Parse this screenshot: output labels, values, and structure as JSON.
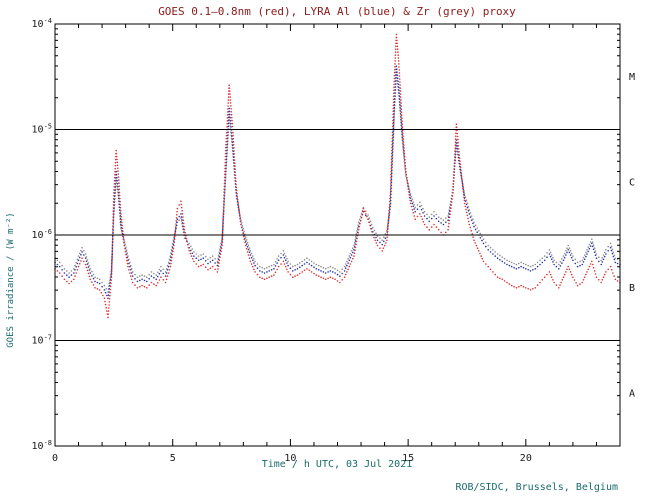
{
  "credit": "ROB/SIDC, Brussels, Belgium",
  "colors": {
    "title": "#8b1a1a",
    "axis_label": "#1a6b6b",
    "credit": "#1a6b6b",
    "tick": "#1a1a1a",
    "flare_class": "#111111",
    "frame": "#000000",
    "background": "#ffffff",
    "goes_red": "#dd3030",
    "lyra_al_blue": "#2233aa",
    "lyra_zr_grey": "#8c8c8c"
  },
  "chart_data": {
    "type": "scatter",
    "title": "GOES 0.1–0.8nm (red), LYRA Al (blue) & Zr (grey) proxy",
    "xlabel": "Time / h UTC, 03 Jul 2021",
    "ylabel": "GOES irradiance / (W m⁻²)",
    "x_range": [
      0,
      24
    ],
    "y_log10_range": [
      -8,
      -4
    ],
    "y_scale": "log10",
    "y_unit": "W m-2",
    "x_major_ticks": [
      0,
      5,
      10,
      15,
      20
    ],
    "y_decades": [
      -4,
      -5,
      -6,
      -7,
      -8
    ],
    "hlines_log10": [
      -5,
      -6,
      -7
    ],
    "grid": "off",
    "legend": "in-title",
    "flare_classes": [
      {
        "label": "M",
        "log10_mid": -4.5
      },
      {
        "label": "C",
        "log10_mid": -5.5
      },
      {
        "label": "B",
        "log10_mid": -6.5
      },
      {
        "label": "A",
        "log10_mid": -7.5
      }
    ],
    "x": [
      0,
      0.2,
      0.4,
      0.6,
      0.8,
      1.0,
      1.15,
      1.3,
      1.5,
      1.7,
      1.9,
      2.1,
      2.25,
      2.4,
      2.5,
      2.6,
      2.7,
      2.8,
      2.95,
      3.1,
      3.3,
      3.5,
      3.7,
      3.9,
      4.1,
      4.3,
      4.5,
      4.7,
      4.9,
      5.05,
      5.2,
      5.35,
      5.5,
      5.7,
      5.9,
      6.1,
      6.3,
      6.5,
      6.7,
      6.9,
      7.1,
      7.25,
      7.4,
      7.55,
      7.7,
      7.9,
      8.1,
      8.3,
      8.5,
      8.7,
      8.9,
      9.1,
      9.3,
      9.5,
      9.7,
      9.9,
      10.1,
      10.3,
      10.5,
      10.7,
      10.9,
      11.1,
      11.3,
      11.5,
      11.7,
      11.9,
      12.1,
      12.3,
      12.5,
      12.7,
      12.9,
      13.1,
      13.3,
      13.5,
      13.7,
      13.9,
      14.1,
      14.25,
      14.4,
      14.5,
      14.6,
      14.75,
      14.9,
      15.1,
      15.3,
      15.5,
      15.7,
      15.9,
      16.1,
      16.3,
      16.5,
      16.7,
      16.9,
      17.05,
      17.2,
      17.4,
      17.6,
      17.8,
      18.0,
      18.2,
      18.4,
      18.6,
      18.8,
      19.0,
      19.2,
      19.4,
      19.6,
      19.8,
      20.0,
      20.2,
      20.4,
      20.6,
      20.8,
      21.0,
      21.2,
      21.4,
      21.6,
      21.8,
      22.0,
      22.2,
      22.4,
      22.6,
      22.8,
      23.0,
      23.2,
      23.4,
      23.6,
      23.8,
      24.0
    ],
    "series": [
      {
        "id": "goes-red",
        "name": "GOES 0.1-0.8nm",
        "color": "#dd3030",
        "log10_values": [
          -6.32,
          -6.36,
          -6.42,
          -6.46,
          -6.42,
          -6.3,
          -6.22,
          -6.28,
          -6.42,
          -6.5,
          -6.52,
          -6.6,
          -6.78,
          -6.4,
          -5.6,
          -5.2,
          -5.45,
          -5.8,
          -6.1,
          -6.3,
          -6.45,
          -6.5,
          -6.48,
          -6.5,
          -6.45,
          -6.48,
          -6.4,
          -6.45,
          -6.3,
          -6.1,
          -5.75,
          -5.68,
          -5.95,
          -6.15,
          -6.25,
          -6.3,
          -6.28,
          -6.33,
          -6.3,
          -6.35,
          -6.1,
          -5.2,
          -4.58,
          -5.0,
          -5.55,
          -5.9,
          -6.1,
          -6.25,
          -6.35,
          -6.4,
          -6.42,
          -6.4,
          -6.38,
          -6.3,
          -6.25,
          -6.35,
          -6.4,
          -6.38,
          -6.35,
          -6.32,
          -6.35,
          -6.38,
          -6.4,
          -6.42,
          -6.4,
          -6.42,
          -6.45,
          -6.4,
          -6.3,
          -6.2,
          -5.95,
          -5.75,
          -5.85,
          -6.0,
          -6.1,
          -6.15,
          -6.05,
          -5.6,
          -4.6,
          -4.1,
          -4.35,
          -4.95,
          -5.4,
          -5.7,
          -5.85,
          -5.8,
          -5.9,
          -5.95,
          -5.9,
          -5.95,
          -6.0,
          -5.95,
          -5.6,
          -4.95,
          -5.3,
          -5.7,
          -5.9,
          -6.05,
          -6.15,
          -6.25,
          -6.3,
          -6.35,
          -6.4,
          -6.42,
          -6.45,
          -6.48,
          -6.5,
          -6.48,
          -6.5,
          -6.52,
          -6.5,
          -6.45,
          -6.4,
          -6.35,
          -6.45,
          -6.5,
          -6.4,
          -6.3,
          -6.4,
          -6.48,
          -6.45,
          -6.35,
          -6.25,
          -6.4,
          -6.45,
          -6.35,
          -6.3,
          -6.42,
          -6.45
        ]
      },
      {
        "id": "lyra-al-blue",
        "name": "LYRA Al proxy",
        "color": "#2233aa",
        "log10_values": [
          -6.26,
          -6.3,
          -6.36,
          -6.4,
          -6.36,
          -6.24,
          -6.16,
          -6.22,
          -6.36,
          -6.44,
          -6.46,
          -6.52,
          -6.6,
          -6.36,
          -5.75,
          -5.4,
          -5.6,
          -5.9,
          -6.1,
          -6.24,
          -6.39,
          -6.44,
          -6.42,
          -6.44,
          -6.39,
          -6.42,
          -6.34,
          -6.39,
          -6.24,
          -6.06,
          -5.85,
          -5.8,
          -6.0,
          -6.12,
          -6.2,
          -6.24,
          -6.22,
          -6.27,
          -6.24,
          -6.29,
          -6.06,
          -5.4,
          -4.8,
          -5.15,
          -5.6,
          -5.9,
          -6.06,
          -6.19,
          -6.29,
          -6.34,
          -6.36,
          -6.34,
          -6.32,
          -6.24,
          -6.19,
          -6.29,
          -6.34,
          -6.32,
          -6.29,
          -6.26,
          -6.29,
          -6.32,
          -6.34,
          -6.36,
          -6.34,
          -6.36,
          -6.39,
          -6.34,
          -6.24,
          -6.14,
          -5.92,
          -5.78,
          -5.85,
          -5.97,
          -6.05,
          -6.09,
          -6.0,
          -5.7,
          -4.85,
          -4.4,
          -4.6,
          -5.05,
          -5.4,
          -5.65,
          -5.78,
          -5.73,
          -5.82,
          -5.87,
          -5.82,
          -5.87,
          -5.9,
          -5.86,
          -5.6,
          -5.1,
          -5.35,
          -5.65,
          -5.8,
          -5.92,
          -6.0,
          -6.08,
          -6.14,
          -6.18,
          -6.22,
          -6.25,
          -6.28,
          -6.3,
          -6.32,
          -6.3,
          -6.32,
          -6.34,
          -6.32,
          -6.28,
          -6.24,
          -6.18,
          -6.28,
          -6.32,
          -6.24,
          -6.14,
          -6.24,
          -6.3,
          -6.28,
          -6.18,
          -6.08,
          -6.22,
          -6.28,
          -6.18,
          -6.12,
          -6.26,
          -6.28
        ]
      },
      {
        "id": "lyra-zr-grey",
        "name": "LYRA Zr proxy",
        "color": "#8c8c8c",
        "log10_values": [
          -6.22,
          -6.26,
          -6.32,
          -6.36,
          -6.32,
          -6.2,
          -6.12,
          -6.18,
          -6.32,
          -6.4,
          -6.42,
          -6.48,
          -6.54,
          -6.32,
          -5.8,
          -5.48,
          -5.65,
          -5.94,
          -6.06,
          -6.2,
          -6.35,
          -6.4,
          -6.38,
          -6.4,
          -6.35,
          -6.38,
          -6.3,
          -6.35,
          -6.2,
          -6.02,
          -5.88,
          -5.84,
          -6.03,
          -6.08,
          -6.16,
          -6.2,
          -6.18,
          -6.23,
          -6.2,
          -6.25,
          -6.02,
          -5.45,
          -4.88,
          -5.2,
          -5.63,
          -5.86,
          -6.02,
          -6.15,
          -6.25,
          -6.3,
          -6.32,
          -6.3,
          -6.28,
          -6.2,
          -6.15,
          -6.25,
          -6.3,
          -6.28,
          -6.25,
          -6.22,
          -6.25,
          -6.28,
          -6.3,
          -6.32,
          -6.3,
          -6.32,
          -6.35,
          -6.3,
          -6.2,
          -6.1,
          -5.88,
          -5.74,
          -5.81,
          -5.93,
          -6.01,
          -6.05,
          -5.96,
          -5.73,
          -4.92,
          -4.48,
          -4.65,
          -5.1,
          -5.44,
          -5.61,
          -5.74,
          -5.69,
          -5.78,
          -5.83,
          -5.78,
          -5.83,
          -5.86,
          -5.82,
          -5.57,
          -5.15,
          -5.38,
          -5.61,
          -5.76,
          -5.88,
          -5.96,
          -6.04,
          -6.1,
          -6.14,
          -6.18,
          -6.21,
          -6.24,
          -6.26,
          -6.28,
          -6.26,
          -6.28,
          -6.3,
          -6.28,
          -6.24,
          -6.2,
          -6.14,
          -6.24,
          -6.28,
          -6.2,
          -6.1,
          -6.2,
          -6.26,
          -6.24,
          -6.14,
          -6.04,
          -6.18,
          -6.24,
          -6.14,
          -6.08,
          -6.22,
          -6.24
        ]
      }
    ]
  }
}
